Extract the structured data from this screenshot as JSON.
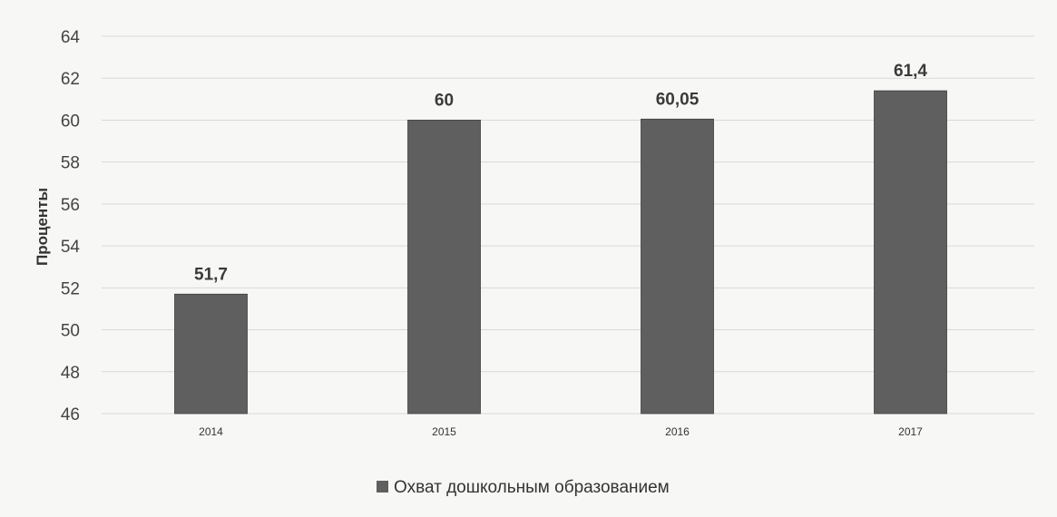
{
  "chart_data": {
    "type": "bar",
    "categories": [
      "2014",
      "2015",
      "2016",
      "2017"
    ],
    "series": [
      {
        "name": "Охват дошкольным образованием",
        "values": [
          51.7,
          60,
          60.05,
          61.4
        ],
        "labels": [
          "51,7",
          "60",
          "60,05",
          "61,4"
        ],
        "color": "#5f5f5f"
      }
    ],
    "title": "",
    "xlabel": "",
    "ylabel": "Проценты",
    "ylim": [
      46,
      64
    ],
    "yticks": [
      46,
      48,
      50,
      52,
      54,
      56,
      58,
      60,
      62,
      64
    ],
    "grid": true,
    "legend": "bottom-center"
  }
}
